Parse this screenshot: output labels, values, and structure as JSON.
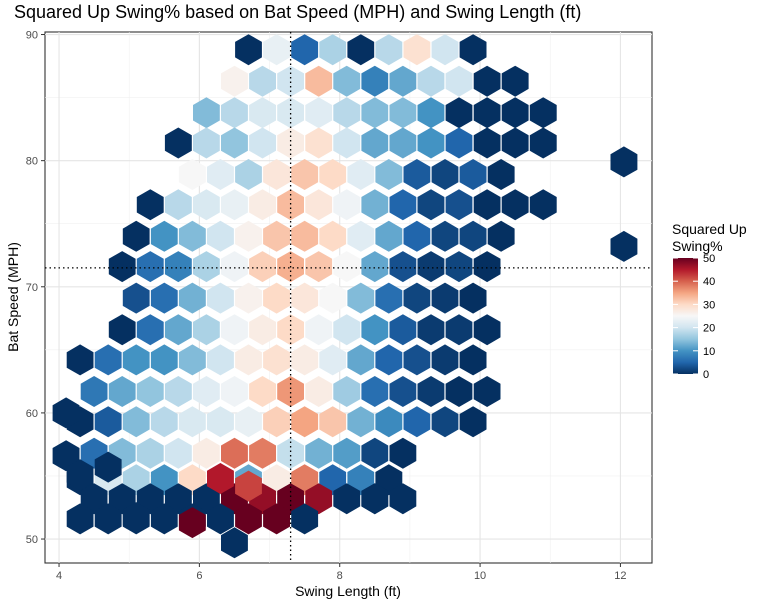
{
  "chart_data": {
    "type": "hexbin",
    "title": "Squared Up Swing% based on Bat Speed (MPH) and Swing Length (ft)",
    "xlabel": "Swing Length (ft)",
    "ylabel": "Bat Speed (MPH)",
    "xlim": [
      3.8,
      12.45
    ],
    "ylim": [
      48.1,
      90.2
    ],
    "xticks": [
      4,
      6,
      8,
      10,
      12
    ],
    "yticks": [
      50,
      60,
      70,
      80,
      90
    ],
    "grid": true,
    "ref_lines": {
      "x": 7.3,
      "y": 71.5
    },
    "legend": {
      "title_lines": [
        "Squared Up",
        "Swing%"
      ],
      "ticks": [
        0,
        10,
        20,
        30,
        40,
        50
      ],
      "range": [
        0,
        50
      ],
      "placement": "right",
      "colors": [
        "#053061",
        "#2166ac",
        "#4393c3",
        "#92c5de",
        "#d1e5f0",
        "#f7f7f7",
        "#fddbc7",
        "#f4a582",
        "#d6604d",
        "#b2182b",
        "#67001f"
      ]
    },
    "hex_bins": [
      [
        6.7,
        88.8,
        0
      ],
      [
        7.1,
        88.8,
        23
      ],
      [
        7.5,
        88.8,
        5
      ],
      [
        7.9,
        88.8,
        17
      ],
      [
        8.3,
        88.8,
        0
      ],
      [
        8.7,
        88.8,
        18
      ],
      [
        9.1,
        88.8,
        29
      ],
      [
        9.5,
        88.8,
        20
      ],
      [
        9.9,
        88.8,
        0
      ],
      [
        6.5,
        86.3,
        26
      ],
      [
        6.9,
        86.3,
        18
      ],
      [
        7.3,
        86.3,
        20
      ],
      [
        7.7,
        86.3,
        33
      ],
      [
        8.1,
        86.3,
        14
      ],
      [
        8.5,
        86.3,
        8
      ],
      [
        8.9,
        86.3,
        12
      ],
      [
        9.3,
        86.3,
        18
      ],
      [
        9.7,
        86.3,
        20
      ],
      [
        10.1,
        86.3,
        0
      ],
      [
        10.5,
        86.3,
        0
      ],
      [
        6.1,
        83.8,
        14
      ],
      [
        6.5,
        83.8,
        18
      ],
      [
        6.9,
        83.8,
        21
      ],
      [
        7.3,
        83.8,
        21
      ],
      [
        7.7,
        83.8,
        22
      ],
      [
        8.1,
        83.8,
        18
      ],
      [
        8.5,
        83.8,
        14
      ],
      [
        8.9,
        83.8,
        14
      ],
      [
        9.3,
        83.8,
        10
      ],
      [
        9.7,
        83.8,
        0
      ],
      [
        10.1,
        83.8,
        0
      ],
      [
        10.5,
        83.8,
        0
      ],
      [
        10.9,
        83.8,
        0
      ],
      [
        5.7,
        81.4,
        0
      ],
      [
        6.1,
        81.4,
        18
      ],
      [
        6.5,
        81.4,
        15
      ],
      [
        6.9,
        81.4,
        20
      ],
      [
        7.3,
        81.4,
        27
      ],
      [
        7.7,
        81.4,
        29
      ],
      [
        8.1,
        81.4,
        20
      ],
      [
        8.5,
        81.4,
        12
      ],
      [
        8.9,
        81.4,
        12
      ],
      [
        9.3,
        81.4,
        10
      ],
      [
        9.7,
        81.4,
        5
      ],
      [
        10.1,
        81.4,
        0
      ],
      [
        10.5,
        81.4,
        0
      ],
      [
        10.9,
        81.4,
        0
      ],
      [
        5.9,
        78.9,
        25
      ],
      [
        6.3,
        78.9,
        22
      ],
      [
        6.7,
        78.9,
        17
      ],
      [
        7.1,
        78.9,
        28
      ],
      [
        7.5,
        78.9,
        32
      ],
      [
        7.9,
        78.9,
        30
      ],
      [
        8.3,
        78.9,
        22
      ],
      [
        8.7,
        78.9,
        14
      ],
      [
        9.1,
        78.9,
        4
      ],
      [
        9.5,
        78.9,
        2
      ],
      [
        9.9,
        78.9,
        4
      ],
      [
        10.3,
        78.9,
        0
      ],
      [
        12.05,
        79.9,
        0
      ],
      [
        5.3,
        76.5,
        0
      ],
      [
        5.7,
        76.5,
        18
      ],
      [
        6.1,
        76.5,
        21
      ],
      [
        6.5,
        76.5,
        23
      ],
      [
        6.9,
        76.5,
        27
      ],
      [
        7.3,
        76.5,
        33
      ],
      [
        7.7,
        76.5,
        28
      ],
      [
        8.1,
        76.5,
        24
      ],
      [
        8.5,
        76.5,
        13
      ],
      [
        8.9,
        76.5,
        5
      ],
      [
        9.3,
        76.5,
        2
      ],
      [
        9.7,
        76.5,
        3
      ],
      [
        10.1,
        76.5,
        0
      ],
      [
        10.5,
        76.5,
        0
      ],
      [
        10.9,
        76.5,
        0
      ],
      [
        5.1,
        74.0,
        0
      ],
      [
        5.5,
        74.0,
        10
      ],
      [
        5.9,
        74.0,
        14
      ],
      [
        6.3,
        74.0,
        20
      ],
      [
        6.7,
        74.0,
        26
      ],
      [
        7.1,
        74.0,
        32
      ],
      [
        7.5,
        74.0,
        33
      ],
      [
        7.9,
        74.0,
        30
      ],
      [
        8.3,
        74.0,
        22
      ],
      [
        8.7,
        74.0,
        12
      ],
      [
        9.1,
        74.0,
        5
      ],
      [
        9.5,
        74.0,
        2
      ],
      [
        9.9,
        74.0,
        2
      ],
      [
        10.3,
        74.0,
        0
      ],
      [
        4.9,
        71.6,
        0
      ],
      [
        5.3,
        71.6,
        6
      ],
      [
        5.7,
        71.6,
        8
      ],
      [
        6.1,
        71.6,
        17
      ],
      [
        6.5,
        71.6,
        24
      ],
      [
        6.9,
        71.6,
        31
      ],
      [
        7.3,
        71.6,
        34
      ],
      [
        7.7,
        71.6,
        32
      ],
      [
        8.1,
        71.6,
        25
      ],
      [
        8.5,
        71.6,
        12
      ],
      [
        8.9,
        71.6,
        3
      ],
      [
        9.3,
        71.6,
        1
      ],
      [
        9.7,
        71.6,
        2
      ],
      [
        10.1,
        71.6,
        0
      ],
      [
        12.05,
        73.2,
        0
      ],
      [
        5.1,
        69.1,
        3
      ],
      [
        5.5,
        69.1,
        6
      ],
      [
        5.9,
        69.1,
        13
      ],
      [
        6.3,
        69.1,
        20
      ],
      [
        6.7,
        69.1,
        26
      ],
      [
        7.1,
        69.1,
        30
      ],
      [
        7.5,
        69.1,
        28
      ],
      [
        7.9,
        69.1,
        25
      ],
      [
        8.3,
        69.1,
        14
      ],
      [
        8.7,
        69.1,
        6
      ],
      [
        9.1,
        69.1,
        2
      ],
      [
        9.5,
        69.1,
        1
      ],
      [
        9.9,
        69.1,
        0
      ],
      [
        4.9,
        66.6,
        0
      ],
      [
        5.3,
        66.6,
        6
      ],
      [
        5.7,
        66.6,
        12
      ],
      [
        6.1,
        66.6,
        17
      ],
      [
        6.5,
        66.6,
        24
      ],
      [
        6.9,
        66.6,
        27
      ],
      [
        7.3,
        66.6,
        30
      ],
      [
        7.7,
        66.6,
        24
      ],
      [
        8.1,
        66.6,
        20
      ],
      [
        8.5,
        66.6,
        10
      ],
      [
        8.9,
        66.6,
        4
      ],
      [
        9.3,
        66.6,
        1
      ],
      [
        9.7,
        66.6,
        1
      ],
      [
        10.1,
        66.6,
        0
      ],
      [
        4.3,
        64.2,
        0
      ],
      [
        4.7,
        64.2,
        6
      ],
      [
        5.1,
        64.2,
        10
      ],
      [
        5.5,
        64.2,
        10
      ],
      [
        5.9,
        64.2,
        14
      ],
      [
        6.3,
        64.2,
        20
      ],
      [
        6.7,
        64.2,
        27
      ],
      [
        7.1,
        64.2,
        29
      ],
      [
        7.5,
        64.2,
        27
      ],
      [
        7.9,
        64.2,
        22
      ],
      [
        8.3,
        64.2,
        12
      ],
      [
        8.7,
        64.2,
        5
      ],
      [
        9.1,
        64.2,
        3
      ],
      [
        9.5,
        64.2,
        1
      ],
      [
        9.9,
        64.2,
        0
      ],
      [
        4.5,
        61.7,
        7
      ],
      [
        4.9,
        61.7,
        12
      ],
      [
        5.3,
        61.7,
        15
      ],
      [
        5.7,
        61.7,
        18
      ],
      [
        6.1,
        61.7,
        22
      ],
      [
        6.5,
        61.7,
        24
      ],
      [
        6.9,
        61.7,
        30
      ],
      [
        7.3,
        61.7,
        36
      ],
      [
        7.7,
        61.7,
        27
      ],
      [
        8.1,
        61.7,
        16
      ],
      [
        8.5,
        61.7,
        6
      ],
      [
        8.9,
        61.7,
        3
      ],
      [
        9.3,
        61.7,
        1
      ],
      [
        9.7,
        61.7,
        0
      ],
      [
        10.1,
        61.7,
        0
      ],
      [
        4.3,
        59.3,
        0
      ],
      [
        4.7,
        59.3,
        4
      ],
      [
        5.1,
        59.3,
        14
      ],
      [
        5.5,
        59.3,
        18
      ],
      [
        5.9,
        59.3,
        21
      ],
      [
        6.3,
        59.3,
        21
      ],
      [
        6.7,
        59.3,
        23
      ],
      [
        7.1,
        59.3,
        31
      ],
      [
        7.5,
        59.3,
        35
      ],
      [
        7.9,
        59.3,
        32
      ],
      [
        8.3,
        59.3,
        13
      ],
      [
        8.7,
        59.3,
        9
      ],
      [
        9.1,
        59.3,
        5
      ],
      [
        9.5,
        59.3,
        2
      ],
      [
        9.9,
        59.3,
        0
      ],
      [
        4.1,
        60.0,
        0
      ],
      [
        4.5,
        56.8,
        6
      ],
      [
        4.9,
        56.8,
        14
      ],
      [
        5.3,
        56.8,
        17
      ],
      [
        5.7,
        56.8,
        20
      ],
      [
        6.1,
        56.8,
        27
      ],
      [
        6.5,
        56.8,
        39
      ],
      [
        6.9,
        56.8,
        38
      ],
      [
        7.3,
        56.8,
        19
      ],
      [
        7.7,
        56.8,
        13
      ],
      [
        8.1,
        56.8,
        11
      ],
      [
        8.5,
        56.8,
        2
      ],
      [
        8.9,
        56.8,
        0
      ],
      [
        4.1,
        56.6,
        0
      ],
      [
        4.3,
        54.7,
        0
      ],
      [
        4.7,
        54.7,
        21
      ],
      [
        5.1,
        54.7,
        17
      ],
      [
        5.5,
        54.7,
        10
      ],
      [
        5.9,
        54.7,
        30
      ],
      [
        6.3,
        54.7,
        21
      ],
      [
        6.7,
        54.7,
        12
      ],
      [
        7.1,
        54.7,
        27
      ],
      [
        7.5,
        54.7,
        38
      ],
      [
        7.9,
        54.7,
        5
      ],
      [
        8.3,
        54.7,
        8
      ],
      [
        8.7,
        54.7,
        0
      ],
      [
        4.5,
        53.2,
        0
      ],
      [
        4.9,
        53.2,
        0
      ],
      [
        5.3,
        53.2,
        0
      ],
      [
        5.7,
        53.2,
        0
      ],
      [
        6.1,
        53.2,
        0
      ],
      [
        6.5,
        53.2,
        50
      ],
      [
        6.9,
        53.2,
        47
      ],
      [
        7.3,
        53.2,
        50
      ],
      [
        7.7,
        53.2,
        47
      ],
      [
        8.1,
        53.2,
        0
      ],
      [
        8.5,
        53.2,
        0
      ],
      [
        8.9,
        53.2,
        0
      ],
      [
        4.3,
        51.6,
        0
      ],
      [
        4.7,
        51.6,
        0
      ],
      [
        5.1,
        51.6,
        0
      ],
      [
        5.5,
        51.6,
        0
      ],
      [
        5.9,
        51.6,
        0
      ],
      [
        6.3,
        51.6,
        0
      ],
      [
        6.7,
        51.6,
        50
      ],
      [
        7.1,
        51.6,
        50
      ],
      [
        7.5,
        51.6,
        0
      ],
      [
        4.3,
        55.1,
        0
      ],
      [
        4.7,
        55.7,
        0
      ],
      [
        6.3,
        54.8,
        45
      ],
      [
        6.7,
        54.2,
        42
      ],
      [
        5.1,
        51.7,
        0
      ],
      [
        5.9,
        51.3,
        50
      ],
      [
        6.5,
        49.7,
        0
      ],
      [
        8.5,
        53.2,
        0
      ]
    ]
  }
}
